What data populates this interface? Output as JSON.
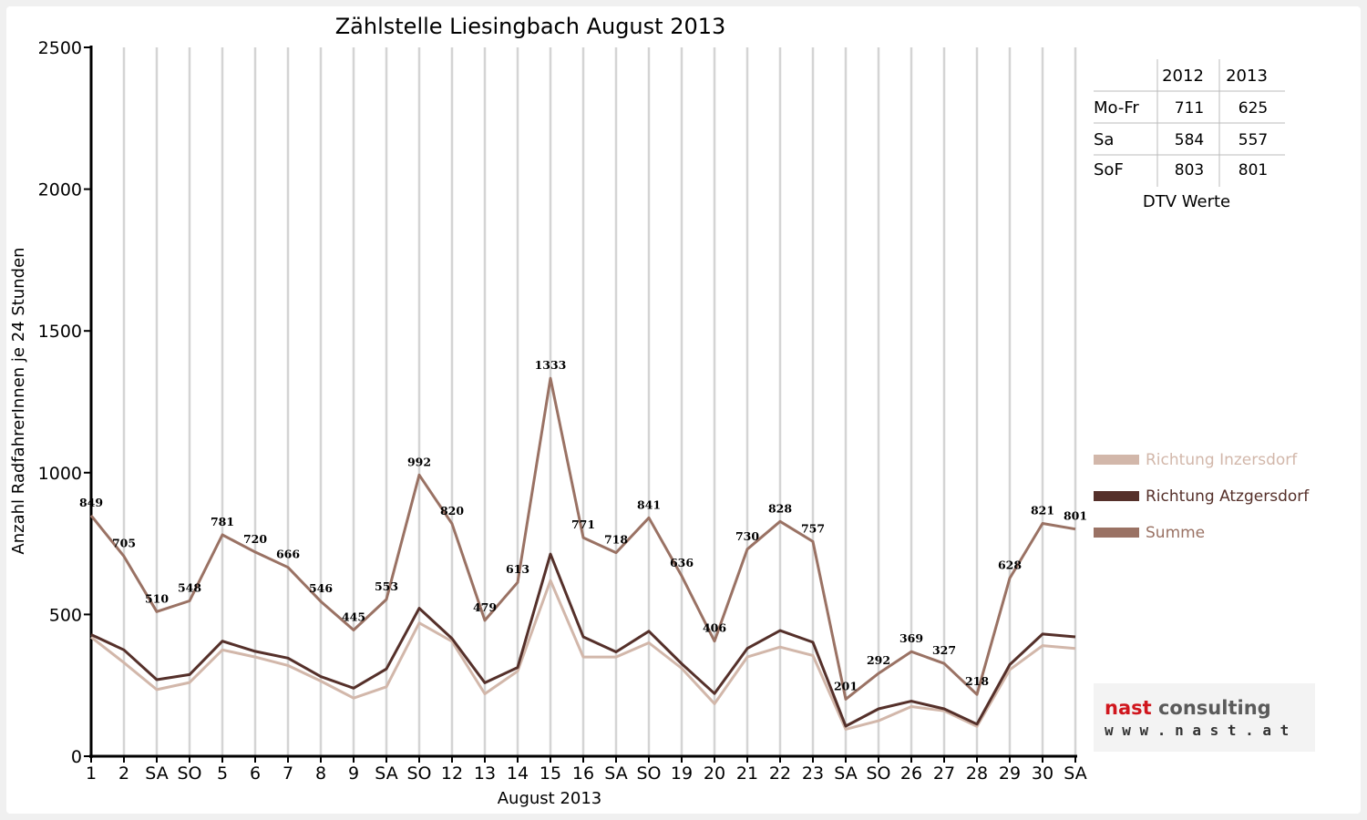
{
  "chart_data": {
    "type": "line",
    "title": "Zählstelle Liesingbach August 2013",
    "xlabel": "August 2013",
    "ylabel": "Anzahl RadfahrerInnen je 24 Stunden",
    "ylim": [
      0,
      2500
    ],
    "yticks": [
      0,
      500,
      1000,
      1500,
      2000,
      2500
    ],
    "grid": "vertical",
    "legend_placement": "right",
    "categories": [
      "1",
      "2",
      "SA",
      "SO",
      "5",
      "6",
      "7",
      "8",
      "9",
      "SA",
      "SO",
      "12",
      "13",
      "14",
      "15",
      "16",
      "SA",
      "SO",
      "19",
      "20",
      "21",
      "22",
      "23",
      "SA",
      "SO",
      "26",
      "27",
      "28",
      "29",
      "30",
      "SA"
    ],
    "highlight_categories": [
      "SO",
      "15"
    ],
    "highlight_color": "#e60000",
    "series": [
      {
        "name": "Richtung Inzersdorf",
        "color": "#d2b7aa",
        "values": [
          420,
          330,
          235,
          260,
          375,
          350,
          320,
          265,
          205,
          245,
          470,
          405,
          220,
          300,
          620,
          350,
          350,
          400,
          310,
          185,
          350,
          385,
          355,
          95,
          125,
          175,
          160,
          105,
          305,
          390,
          380
        ]
      },
      {
        "name": "Richtung Atzgersdorf",
        "color": "#55302a",
        "values": [
          429,
          375,
          270,
          288,
          406,
          370,
          346,
          281,
          240,
          308,
          522,
          415,
          259,
          313,
          713,
          421,
          368,
          441,
          326,
          221,
          380,
          443,
          402,
          106,
          167,
          194,
          167,
          113,
          323,
          431,
          421
        ]
      },
      {
        "name": "Summe",
        "color": "#9a7264",
        "values": [
          849,
          705,
          510,
          548,
          781,
          720,
          666,
          546,
          445,
          553,
          992,
          820,
          479,
          613,
          1333,
          771,
          718,
          841,
          636,
          406,
          730,
          828,
          757,
          201,
          292,
          369,
          327,
          218,
          628,
          821,
          801
        ]
      }
    ],
    "data_labels": [
      "849",
      "705",
      "510",
      "548",
      "781",
      "720",
      "666",
      "546",
      "445",
      "553",
      "992",
      "820",
      "479",
      "613",
      "1333",
      "771",
      "718",
      "841",
      "636",
      "406",
      "730",
      "828",
      "757",
      "201",
      "292",
      "369",
      "327",
      "218",
      "628",
      "821",
      "801"
    ]
  },
  "dtv_table": {
    "headers": [
      "2012",
      "2013"
    ],
    "rows": [
      {
        "label": "Mo-Fr",
        "v2012": "711",
        "v2013": "625"
      },
      {
        "label": "Sa",
        "v2012": "584",
        "v2013": "557"
      },
      {
        "label": "SoF",
        "v2012": "803",
        "v2013": "801"
      }
    ],
    "caption": "DTV Werte"
  },
  "logo": {
    "name_part1": "nast",
    "name_part2": " consulting",
    "url": "w w w . n a s t . a t",
    "color1": "#d0161d",
    "color2": "#5a5a5a"
  }
}
